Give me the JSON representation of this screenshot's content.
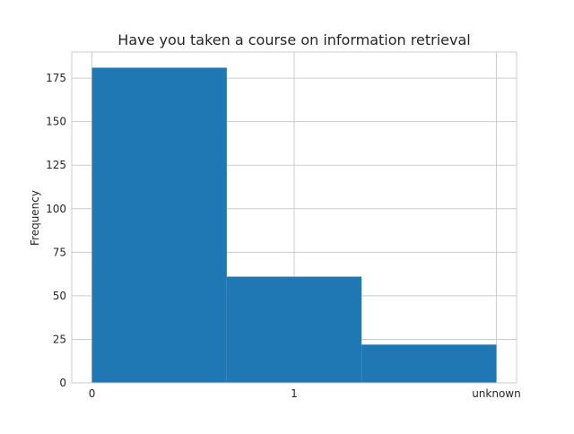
{
  "chart_data": {
    "type": "bar",
    "title": "Have you taken a course on information retrieval",
    "xlabel": "",
    "ylabel": "Frequency",
    "categories": [
      "0",
      "1",
      "unknown"
    ],
    "values": [
      181,
      61,
      22
    ],
    "xticks": [
      {
        "label": "0",
        "value": 0
      },
      {
        "label": "1",
        "value": 1
      },
      {
        "label": "unknown",
        "value": 2
      }
    ],
    "yticks": [
      0,
      25,
      50,
      75,
      100,
      125,
      150,
      175
    ],
    "xlim": [
      -0.1,
      2.1
    ],
    "ylim": [
      0,
      190
    ],
    "bar_edges": [
      0,
      0.6667,
      1.3333,
      2
    ],
    "grid": true,
    "colors": {
      "bar": "#1f77b4",
      "grid": "#cccccc",
      "spine": "#cccccc",
      "text": "#262626"
    }
  }
}
